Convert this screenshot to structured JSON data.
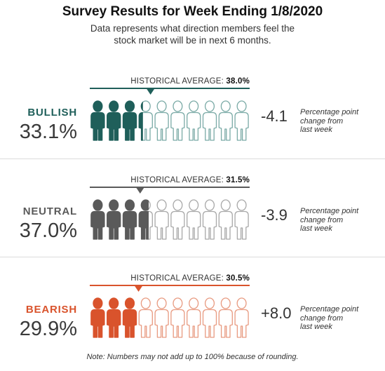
{
  "title": "Survey Results for Week Ending 1/8/2020",
  "subtitle_line1": "Data represents what direction members feel the",
  "subtitle_line2": "stock market will be in next 6 months.",
  "note": "Note: Numbers may not add up to 100% because of rounding.",
  "historical_prefix": "HISTORICAL AVERAGE:",
  "change_desc_line1": "Percentage point",
  "change_desc_line2": "change from",
  "change_desc_line3": "last week",
  "chart_data": {
    "type": "bar",
    "title": "Survey Results for Week Ending 1/8/2020",
    "scale_max": 100,
    "icon_count": 10,
    "categories": [
      "BULLISH",
      "NEUTRAL",
      "BEARISH"
    ],
    "values": [
      33.1,
      37.0,
      29.9
    ],
    "value_labels": [
      "33.1%",
      "37.0%",
      "29.9%"
    ],
    "historical_average": [
      38.0,
      31.5,
      30.5
    ],
    "historical_average_labels": [
      "38.0%",
      "31.5%",
      "30.5%"
    ],
    "change_from_last_week": [
      -4.1,
      -3.9,
      8.0
    ],
    "change_labels": [
      "-4.1",
      "-3.9",
      "+8.0"
    ],
    "colors": [
      "#1f5f5a",
      "#5a5a5a",
      "#d9532c"
    ],
    "outline_colors": [
      "#7aaaa6",
      "#a8a8a8",
      "#e89a80"
    ]
  }
}
